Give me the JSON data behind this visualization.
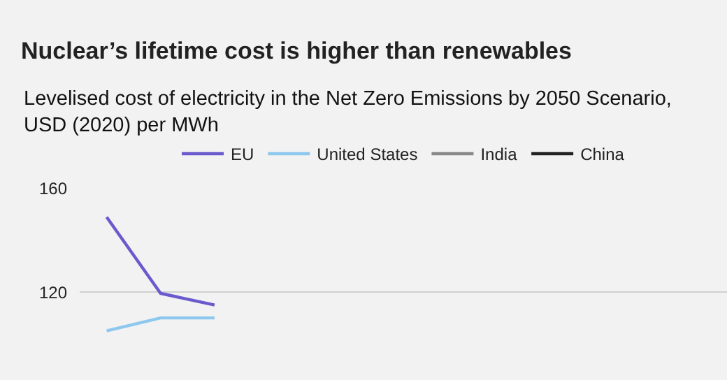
{
  "chart_data": {
    "type": "line",
    "title": "Nuclear’s lifetime cost is higher than renewables",
    "subtitle": "Levelised cost of electricity in the Net Zero Emissions by 2050 Scenario,\nUSD (2020) per MWh",
    "categories": [
      null,
      null,
      null,
      null,
      null,
      null,
      null,
      null,
      null,
      null,
      null,
      null
    ],
    "series": [
      {
        "name": "EU",
        "color": "#6a5acd",
        "values": [
          149,
          119.5,
          115,
          null,
          null,
          null,
          null,
          null,
          null,
          null,
          null,
          null
        ]
      },
      {
        "name": "United States",
        "color": "#8ec8ee",
        "values": [
          105,
          110,
          110,
          null,
          null,
          null,
          null,
          null,
          null,
          null,
          null,
          null
        ]
      },
      {
        "name": "India",
        "color": "#888888",
        "values": [
          null,
          null,
          null,
          null,
          null,
          null,
          null,
          null,
          null,
          null,
          null,
          null
        ]
      },
      {
        "name": "China",
        "color": "#222222",
        "values": [
          null,
          null,
          null,
          null,
          null,
          null,
          null,
          null,
          null,
          null,
          null,
          null
        ]
      }
    ],
    "ylim": [
      86,
      160
    ],
    "yticks": [
      120,
      160
    ],
    "grid": "y",
    "legend": "top",
    "marker": "none",
    "line_style": "solid",
    "tick_labels": "y"
  }
}
